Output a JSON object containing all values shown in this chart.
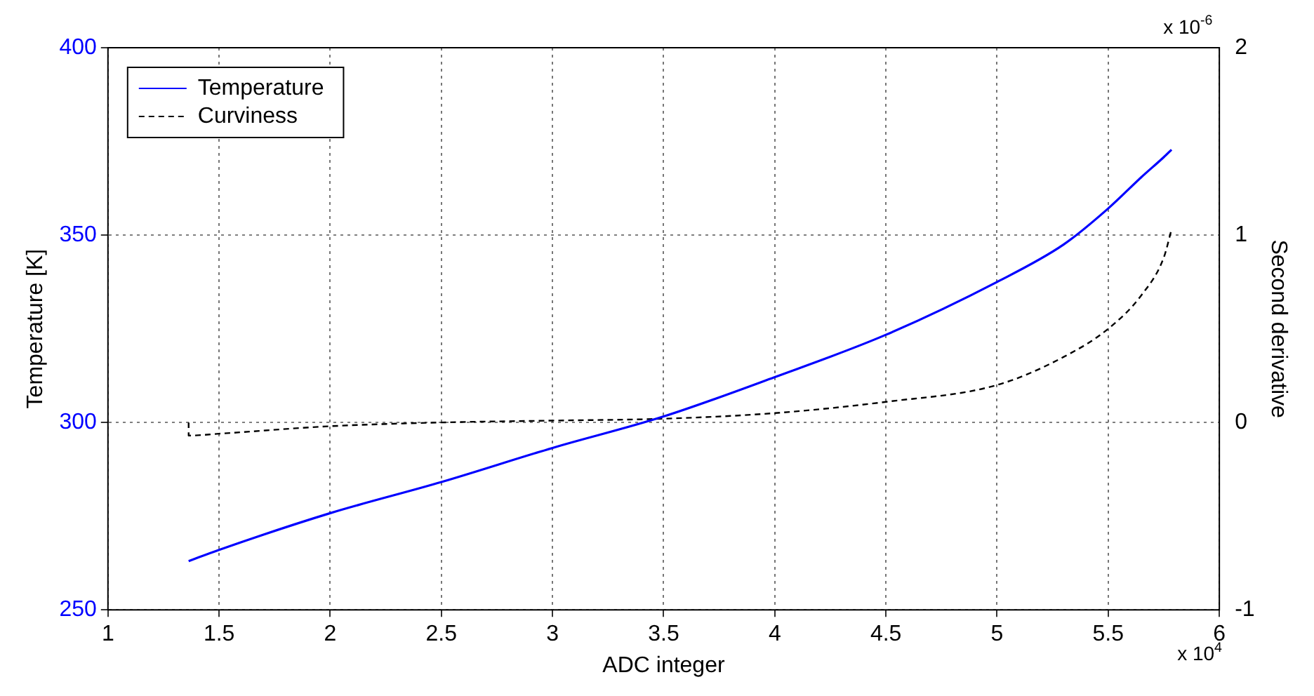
{
  "chart_data": {
    "type": "line",
    "xlabel": "ADC integer",
    "ylabel": "Temperature [K]",
    "y2label": "Second derivative",
    "x": [
      1.363,
      1.5,
      2,
      2.5,
      3,
      3.5,
      4,
      4.5,
      5,
      5.3,
      5.5,
      5.65,
      5.75,
      5.785
    ],
    "series": [
      {
        "name": "Temperature",
        "color": "#0000ff",
        "line_style": "solid",
        "values": [
          263,
          266,
          275.8,
          284.1,
          293.2,
          301.6,
          312.1,
          323.4,
          337.5,
          347.5,
          357.1,
          365.5,
          370.8,
          372.8
        ]
      },
      {
        "name": "Curviness",
        "color": "#000000",
        "line_style": "dashed",
        "axis": "y2",
        "x": [
          1.363,
          1.363,
          1.5,
          2,
          2.5,
          3,
          3.5,
          4,
          4.5,
          5,
          5.3,
          5.5,
          5.65,
          5.75,
          5.785
        ],
        "values": [
          0,
          -0.07,
          -0.06,
          -0.02,
          0,
          0.01,
          0.02,
          0.05,
          0.11,
          0.2,
          0.35,
          0.5,
          0.68,
          0.88,
          1.03
        ]
      }
    ],
    "xlim": [
      1,
      6
    ],
    "xticks": [
      1,
      1.5,
      2,
      2.5,
      3,
      3.5,
      4,
      4.5,
      5,
      5.5,
      6
    ],
    "ylim": [
      250,
      400
    ],
    "yticks": [
      250,
      300,
      350,
      400
    ],
    "y2lim": [
      -1,
      2
    ],
    "y2ticks": [
      -1,
      0,
      1,
      2
    ],
    "annotations": [
      "x 10$^{4}$",
      "x 10$^{-6}$"
    ],
    "grid": true,
    "legend": "top left",
    "marker": "none"
  }
}
